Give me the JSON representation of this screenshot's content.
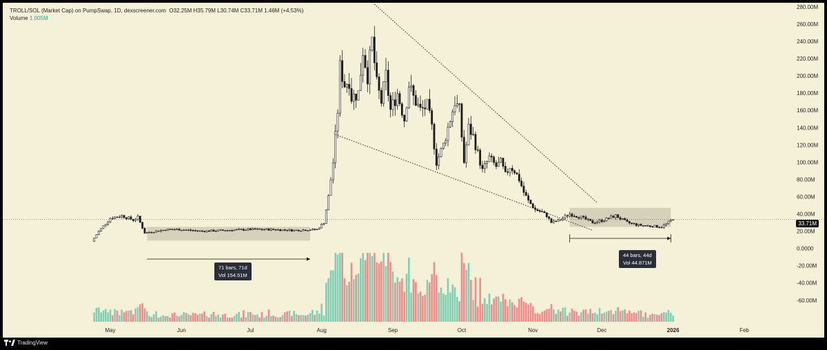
{
  "header": {
    "symbol": "TROLL/SOL (Market Cap) on PumpSwap, 1D, dexscreener.com",
    "ohlc": "O32.25M  H35.79M  L30.74M  C33.71M  1.46M (+4.53%)",
    "volume_label": "Volume",
    "volume_value": "1.005M"
  },
  "price_tag": "33.71M",
  "branding": "TradingView",
  "annotations": [
    {
      "line1": "71 bars, 71d",
      "line2": "Vol 154.51M"
    },
    {
      "line1": "44 bars, 44d",
      "line2": "Vol 44.871M"
    }
  ],
  "colors": {
    "background": "#f5f1d8",
    "candle": "#1a1a1a",
    "vol_up": "#7fcfb4",
    "vol_down": "#f08c8c",
    "range_box": "#c9c5b2"
  },
  "chart_data": {
    "type": "candlestick",
    "title": "TROLL/SOL (Market Cap) on PumpSwap, 1D",
    "y_axis_ticks": [
      "280.00M",
      "260.00M",
      "240.00M",
      "220.00M",
      "200.00M",
      "180.00M",
      "160.00M",
      "140.00M",
      "120.00M",
      "100.00M",
      "80.00M",
      "60.00M",
      "40.00M",
      "20.00M",
      "0.0000",
      "-20.00M",
      "-40.00M",
      "-60.00M"
    ],
    "y_axis_values": [
      280,
      260,
      240,
      220,
      200,
      180,
      160,
      140,
      120,
      100,
      80,
      60,
      40,
      20,
      0,
      -20,
      -40,
      -60
    ],
    "ylim": [
      -79,
      289
    ],
    "x_axis_ticks": [
      "May",
      "Jun",
      "Jul",
      "Aug",
      "Sep",
      "Oct",
      "Nov",
      "Dec",
      "2026",
      "Feb"
    ],
    "x_axis_day_index": [
      0,
      31,
      61,
      92,
      123,
      153,
      184,
      214,
      245,
      276
    ],
    "last_price": 33.71,
    "close_path_days": [
      -8,
      -5,
      0,
      5,
      10,
      12,
      15,
      20,
      25,
      30,
      40,
      50,
      60,
      70,
      80,
      90,
      93,
      95,
      97,
      99,
      100,
      102,
      104,
      105,
      108,
      110,
      112,
      114,
      116,
      118,
      120,
      122,
      125,
      128,
      130,
      132,
      135,
      138,
      140,
      142,
      145,
      148,
      150,
      152,
      154,
      156,
      158,
      160,
      162,
      165,
      168,
      170,
      172,
      174,
      176,
      178,
      180,
      182,
      185,
      188,
      190,
      192,
      195,
      200,
      205,
      210,
      215,
      220,
      225,
      230,
      235,
      240,
      245
    ],
    "close_path_values": [
      8,
      20,
      35,
      38,
      33,
      36,
      18,
      20,
      22,
      22,
      20,
      21,
      22,
      22,
      21,
      22,
      30,
      60,
      100,
      160,
      210,
      190,
      195,
      175,
      180,
      230,
      200,
      240,
      190,
      170,
      200,
      160,
      180,
      150,
      190,
      175,
      160,
      165,
      140,
      100,
      120,
      150,
      170,
      160,
      100,
      140,
      130,
      110,
      90,
      105,
      95,
      100,
      85,
      95,
      90,
      80,
      65,
      55,
      45,
      42,
      38,
      30,
      32,
      40,
      36,
      30,
      33,
      38,
      30,
      27,
      26,
      25,
      33.71
    ],
    "trend_lines": [
      {
        "name": "upper-wedge",
        "from": {
          "day": 115,
          "value": 283
        },
        "to": {
          "day": 212,
          "value": 53
        }
      },
      {
        "name": "lower-wedge",
        "from": {
          "day": 98,
          "value": 132
        },
        "to": {
          "day": 210,
          "value": 21
        }
      }
    ],
    "ranges": [
      {
        "name": "jun-jul-range",
        "start_day": 16,
        "end_day": 87,
        "high": 25,
        "low": 9,
        "bars": 71,
        "days": 71,
        "volume": "154.51M"
      },
      {
        "name": "dec-range",
        "start_day": 200,
        "end_day": 244,
        "high": 47,
        "low": 25,
        "bars": 44,
        "days": 44,
        "volume": "44.871M"
      }
    ]
  }
}
